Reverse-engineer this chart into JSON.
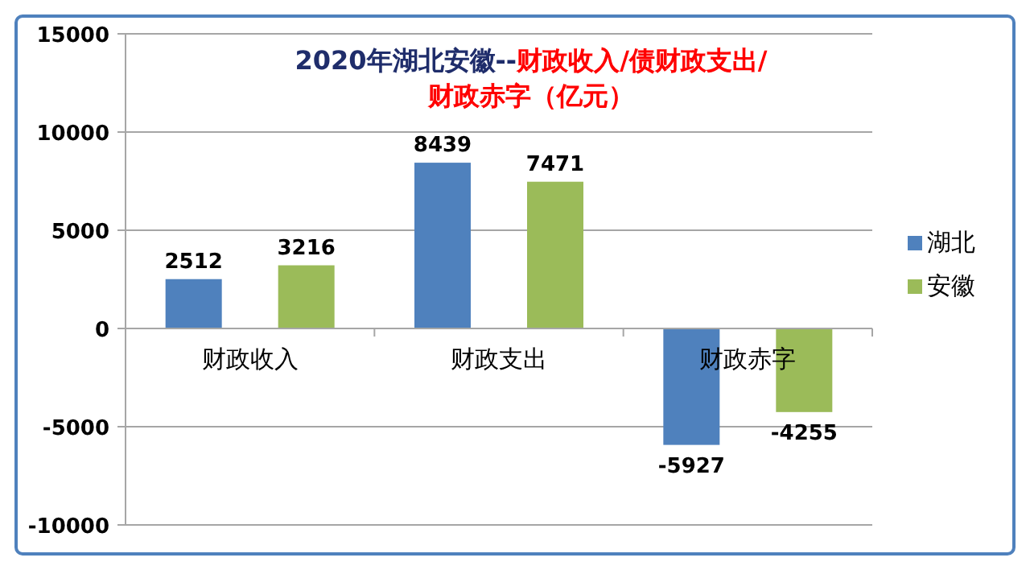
{
  "chart_data": {
    "type": "bar",
    "title": "2020年湖北安徽--",
    "subtitle": "财政收入/债财政支出/财政赤字（亿元）",
    "categories": [
      "财政收入",
      "财政支出",
      "财政赤字"
    ],
    "series": [
      {
        "name": "湖北",
        "color": "#4f81bd",
        "values": [
          2512,
          8439,
          -5927
        ]
      },
      {
        "name": "安徽",
        "color": "#9bbb59",
        "values": [
          3216,
          7471,
          -4255
        ]
      }
    ],
    "ylim": [
      -10000,
      15000
    ],
    "yticks": [
      -10000,
      -5000,
      0,
      5000,
      10000,
      15000
    ],
    "grid": "y",
    "legend": "right",
    "data_labels": true
  }
}
